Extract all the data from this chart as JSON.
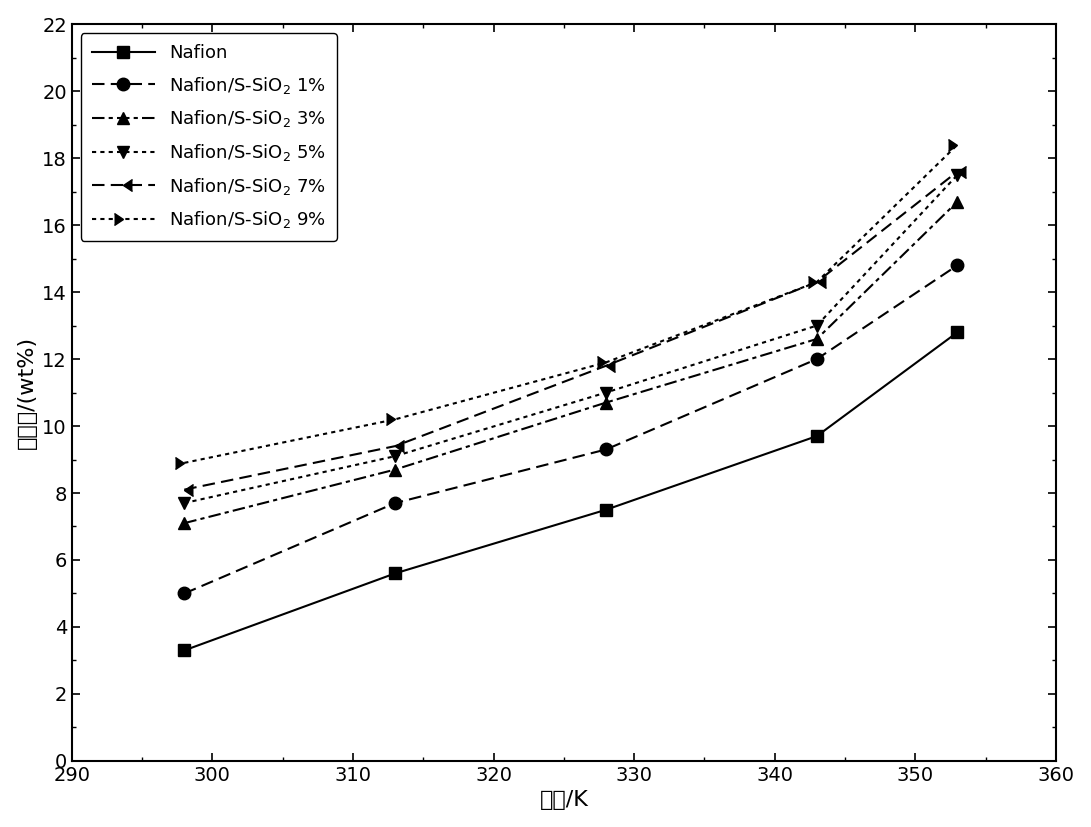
{
  "x_values": [
    298,
    313,
    328,
    343,
    353
  ],
  "series": [
    {
      "label": "Nafion",
      "y": [
        3.3,
        5.6,
        7.5,
        9.7,
        12.8
      ],
      "marker": "s",
      "linestyle": "-",
      "color": "#000000",
      "markerfilled": true
    },
    {
      "label": "Nafion/S-SiO$_2$ 1%",
      "y": [
        5.0,
        7.7,
        9.3,
        12.0,
        14.8
      ],
      "marker": "o",
      "linestyle": "--",
      "color": "#000000",
      "markerfilled": true
    },
    {
      "label": "Nafion/S-SiO$_2$ 3%",
      "y": [
        7.1,
        8.7,
        10.7,
        12.6,
        16.7
      ],
      "marker": "^",
      "linestyle": "-.",
      "color": "#000000",
      "markerfilled": true
    },
    {
      "label": "Nafion/S-SiO$_2$ 5%",
      "y": [
        7.7,
        9.1,
        11.0,
        13.0,
        17.5
      ],
      "marker": "v",
      "linestyle": ":",
      "color": "#000000",
      "markerfilled": true
    },
    {
      "label": "Nafion/S-SiO$_2$ 7%",
      "y": [
        8.1,
        9.4,
        11.8,
        14.3,
        17.6
      ],
      "marker": 4,
      "linestyle": "--",
      "color": "#000000",
      "markerfilled": true
    },
    {
      "label": "Nafion/S-SiO$_2$ 9%",
      "y": [
        8.9,
        10.2,
        11.9,
        14.3,
        18.4
      ],
      "marker": 5,
      "linestyle": ":",
      "color": "#000000",
      "markerfilled": true
    }
  ],
  "xlabel": "温度/K",
  "ylabel": "含水率/(wt%)",
  "xlim": [
    290,
    360
  ],
  "ylim": [
    0,
    22
  ],
  "xticks": [
    290,
    300,
    310,
    320,
    330,
    340,
    350,
    360
  ],
  "yticks": [
    0,
    2,
    4,
    6,
    8,
    10,
    12,
    14,
    16,
    18,
    20,
    22
  ],
  "background_color": "#ffffff",
  "legend_loc": "upper left",
  "markersize": 9,
  "linewidth": 1.5
}
